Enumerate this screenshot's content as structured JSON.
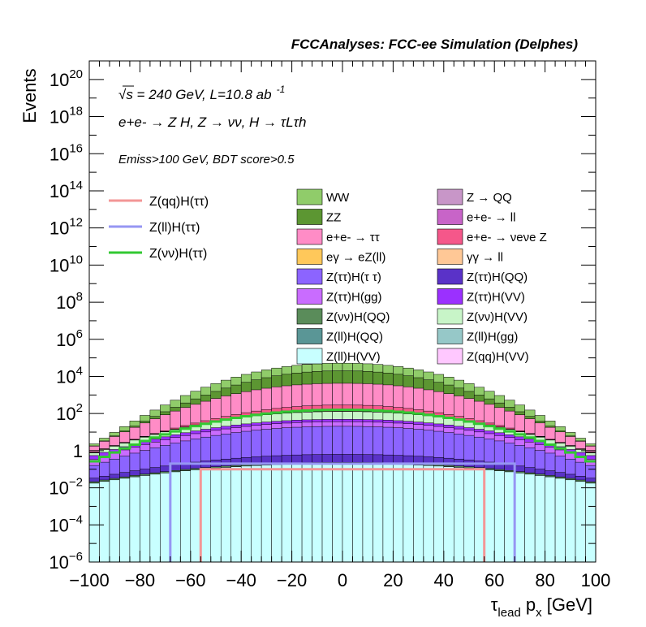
{
  "chart_data": {
    "type": "bar",
    "title": "FCCAnalyses: FCC-ee Simulation (Delphes)",
    "xlabel": "τlead px [GeV]",
    "xlabel_parts": {
      "main": "τ",
      "sub1": "lead",
      "mid": " p",
      "sub2": "x",
      "unit": " [GeV]"
    },
    "ylabel": "Events",
    "xlim": [
      -100,
      100
    ],
    "ylim_log10": [
      -6,
      21
    ],
    "y_scale": "log",
    "x_ticks": [
      "−100",
      "−80",
      "−60",
      "−40",
      "−20",
      "0",
      "20",
      "40",
      "60",
      "80",
      "100"
    ],
    "x_tick_values": [
      -100,
      -80,
      -60,
      -40,
      -20,
      0,
      20,
      40,
      60,
      80,
      100
    ],
    "y_ticks": [
      {
        "value": 20,
        "base": "10",
        "exp": "20"
      },
      {
        "value": 18,
        "base": "10",
        "exp": "18"
      },
      {
        "value": 16,
        "base": "10",
        "exp": "16"
      },
      {
        "value": 14,
        "base": "10",
        "exp": "14"
      },
      {
        "value": 12,
        "base": "10",
        "exp": "12"
      },
      {
        "value": 10,
        "base": "10",
        "exp": "10"
      },
      {
        "value": 8,
        "base": "10",
        "exp": "8"
      },
      {
        "value": 6,
        "base": "10",
        "exp": "6"
      },
      {
        "value": 4,
        "base": "10",
        "exp": "4"
      },
      {
        "value": 2,
        "base": "10",
        "exp": "2"
      },
      {
        "value": 0,
        "base": "1",
        "exp": ""
      },
      {
        "value": -2,
        "base": "10",
        "exp": "−2"
      },
      {
        "value": -4,
        "base": "10",
        "exp": "−4"
      },
      {
        "value": -6,
        "base": "10",
        "exp": "−6"
      }
    ],
    "annotations": {
      "energy": "√s = 240 GeV, L=10.8 ab",
      "energy_exp": "-1",
      "process": "e+e- → Z H, Z → νν, H → τLτh",
      "selection": "Emiss>100 GeV, BDT score>0.5"
    },
    "bins": {
      "min": -100,
      "max": 100,
      "width": 4
    },
    "stack_order_bottom_to_top": [
      "Z(ll)H(VV)",
      "Z(ll)H(QQ)",
      "Z(νν)H(QQ)",
      "Z(ττ)H(QQ)",
      "Z(ττ)H(τ τ)",
      "Z(ττ)H(gg)",
      "Z(ττ)H(VV)",
      "Z(νν)H(VV)",
      "eγ → eZ(ll)",
      "γγ → ll",
      "e+e- → νeνe Z",
      "e+e- → ττ",
      "ZZ",
      "WW"
    ],
    "series": [
      {
        "name": "WW",
        "color": "#90cc6a",
        "peak_log10": 4.5,
        "edge_log10": -0.5
      },
      {
        "name": "ZZ",
        "color": "#5c9632",
        "peak_log10": 4.2,
        "edge_log10": -1.5
      },
      {
        "name": "e+e- → ττ",
        "color": "#ff8cc6",
        "peak_log10": 3.6,
        "edge_log10": -0.2
      },
      {
        "name": "e+e- → νeνe Z",
        "color": "#f5578a",
        "peak_log10": 2.2,
        "edge_log10": -2.5
      },
      {
        "name": "γγ → ll",
        "color": "#ffc896",
        "peak_log10": 0.3,
        "edge_log10": -1.5
      },
      {
        "name": "eγ → eZ(ll)",
        "color": "#ffc85a",
        "peak_log10": 0.0,
        "edge_log10": -1.5
      },
      {
        "name": "Z(νν)H(VV)",
        "color": "#c8f5c8",
        "peak_log10": 1.9,
        "edge_log10": -0.8
      },
      {
        "name": "Z(ττ)H(VV)",
        "color": "#9b30ff",
        "peak_log10": 1.1,
        "edge_log10": -0.8
      },
      {
        "name": "Z(ττ)H(gg)",
        "color": "#c96cff",
        "peak_log10": 1.2,
        "edge_log10": -0.8
      },
      {
        "name": "Z(ττ)H(τ τ)",
        "color": "#8c64ff",
        "peak_log10": 1.3,
        "edge_log10": -1.0
      },
      {
        "name": "Z(ττ)H(QQ)",
        "color": "#5a32c8",
        "peak_log10": -0.4,
        "edge_log10": -2.0
      },
      {
        "name": "Z(νν)H(QQ)",
        "color": "#5a8c5a",
        "peak_log10": -1.5,
        "edge_log10": -2.5
      },
      {
        "name": "Z(ll)H(QQ)",
        "color": "#5a9696",
        "peak_log10": -2.5,
        "edge_log10": -4.0
      },
      {
        "name": "Z(ll)H(VV)",
        "color": "#c8ffff",
        "peak_log10": -0.7,
        "edge_log10": -1.8
      },
      {
        "name": "Z → QQ",
        "color": "#c896c8",
        "peak_log10": null,
        "edge_log10": null
      },
      {
        "name": "e+e- → ll",
        "color": "#c864c8",
        "peak_log10": null,
        "edge_log10": null
      },
      {
        "name": "Z(ll)H(gg)",
        "color": "#96c8c8",
        "peak_log10": null,
        "edge_log10": null
      },
      {
        "name": "Z(qq)H(VV)",
        "color": "#ffc8ff",
        "peak_log10": null,
        "edge_log10": null
      }
    ],
    "signal_lines": [
      {
        "name": "Z(qq)H(ττ)",
        "color": "#f39696",
        "range": [
          -56,
          56
        ],
        "level_log10": -1.0
      },
      {
        "name": "Z(ll)H(ττ)",
        "color": "#9696f3",
        "range": [
          -68,
          68
        ],
        "level_log10": -0.7
      },
      {
        "name": "Z(νν)H(ττ)",
        "color": "#32c832",
        "range": [
          -100,
          100
        ],
        "peak_log10": 2.2,
        "edge_log10": -0.7
      }
    ],
    "legend_stack_columns": [
      [
        "WW",
        "ZZ",
        "e+e- → ττ",
        "eγ → eZ(ll)",
        "Z(ττ)H(τ τ)",
        "Z(ττ)H(gg)",
        "Z(νν)H(QQ)",
        "Z(ll)H(QQ)",
        "Z(ll)H(VV)"
      ],
      [
        "Z → QQ",
        "e+e- → ll",
        "e+e- → νeνe Z",
        "γγ → ll",
        "Z(ττ)H(QQ)",
        "Z(ττ)H(VV)",
        "Z(νν)H(VV)",
        "Z(ll)H(gg)",
        "Z(qq)H(VV)"
      ]
    ],
    "legend_placement": "top",
    "grid": false
  }
}
